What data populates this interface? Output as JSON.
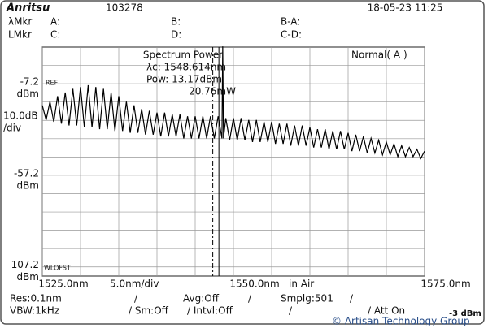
{
  "header": {
    "brand": "Anritsu",
    "id": "103278",
    "datetime": "18-05-23 11:25"
  },
  "markers": {
    "row1": [
      "λMkr",
      "A:",
      "B:",
      "B-A:"
    ],
    "row2": [
      "LMkr",
      "C:",
      "D:",
      "C-D:"
    ]
  },
  "annotation": {
    "title": "Spectrum Power",
    "lines": [
      "λc: 1548.614nm",
      "Pow:  13.17dBm",
      "20.76mW"
    ],
    "mode": "Normal( A )"
  },
  "labels": {
    "ref": "REF",
    "wloffset": "WLOFST",
    "y_unit": "dBm",
    "scale": "10.0dB",
    "scale_unit": "/div",
    "span": "5.0nm/div",
    "medium": "in Air"
  },
  "footer": {
    "row1": [
      "Res:0.1nm",
      "/",
      "Avg:Off",
      "/",
      "Smplg:501",
      "/"
    ],
    "row2": [
      "VBW:1kHz",
      "/ Sm:Off",
      "/ Intvl:Off",
      "/",
      "/ Att On",
      "-3 dBm"
    ],
    "watermark": "© Artisan Technology Group"
  },
  "chart_data": {
    "type": "line",
    "color": "#000000",
    "grid": true,
    "xlim": [
      1525,
      1575
    ],
    "ylim": [
      -112.2,
      12.8
    ],
    "xticks": [
      1525,
      1530,
      1535,
      1540,
      1545,
      1550,
      1555,
      1560,
      1565,
      1570,
      1575
    ],
    "xtick_labels": [
      {
        "value": 1525,
        "label": "1525.0nm"
      },
      {
        "value": 1550,
        "label": "1550.0nm"
      },
      {
        "value": 1575,
        "label": "1575.0nm"
      }
    ],
    "yticks": [
      2.8,
      -7.2,
      -17.2,
      -27.2,
      -37.2,
      -47.2,
      -57.2,
      -67.2,
      -77.2,
      -87.2,
      -97.2,
      -107.2
    ],
    "ytick_labels": [
      -7.2,
      -57.2,
      -107.2
    ],
    "vlines": [
      {
        "x": 1547.3,
        "style": "dashed"
      },
      {
        "x": 1548.1,
        "style": "solid"
      }
    ],
    "x": [
      1525,
      1525.5,
      1526,
      1526.5,
      1527,
      1527.5,
      1528,
      1528.5,
      1529,
      1529.5,
      1530,
      1530.5,
      1531,
      1531.5,
      1532,
      1532.5,
      1533,
      1533.5,
      1534,
      1534.5,
      1535,
      1535.5,
      1536,
      1536.5,
      1537,
      1537.5,
      1538,
      1538.5,
      1539,
      1539.5,
      1540,
      1540.5,
      1541,
      1541.5,
      1542,
      1542.5,
      1543,
      1543.5,
      1544,
      1544.5,
      1545,
      1545.5,
      1546,
      1546.5,
      1547,
      1547.5,
      1548,
      1548.5,
      1548.6,
      1548.7,
      1549,
      1549.5,
      1550,
      1550.5,
      1551,
      1551.5,
      1552,
      1552.5,
      1553,
      1553.5,
      1554,
      1554.5,
      1555,
      1555.5,
      1556,
      1556.5,
      1557,
      1557.5,
      1558,
      1558.5,
      1559,
      1559.5,
      1560,
      1560.5,
      1561,
      1561.5,
      1562,
      1562.5,
      1563,
      1563.5,
      1564,
      1564.5,
      1565,
      1565.5,
      1566,
      1566.5,
      1567,
      1567.5,
      1568,
      1568.5,
      1569,
      1569.5,
      1570,
      1570.5,
      1571,
      1571.5,
      1572,
      1572.5,
      1573,
      1573.5,
      1574,
      1574.5,
      1575
    ],
    "values": [
      -19,
      -27,
      -17,
      -28,
      -14,
      -29,
      -12,
      -30,
      -10,
      -30,
      -9,
      -31,
      -8,
      -31,
      -9,
      -32,
      -10,
      -32,
      -12,
      -33,
      -14,
      -33,
      -17,
      -34,
      -19,
      -34,
      -21,
      -35,
      -22,
      -35,
      -23,
      -36,
      -23,
      -36,
      -24,
      -36,
      -24,
      -37,
      -25,
      -37,
      -25,
      -37,
      -25,
      -37,
      -25,
      -37,
      -25,
      -37,
      13.17,
      -37,
      -26,
      -38,
      -26,
      -38,
      -26,
      -38,
      -27,
      -39,
      -27,
      -39,
      -28,
      -39,
      -28,
      -40,
      -29,
      -40,
      -29,
      -41,
      -30,
      -41,
      -30,
      -41,
      -31,
      -42,
      -32,
      -42,
      -32,
      -43,
      -33,
      -43,
      -33,
      -43,
      -34,
      -44,
      -35,
      -44,
      -36,
      -45,
      -37,
      -45,
      -38,
      -46,
      -39,
      -46,
      -40,
      -47,
      -41,
      -47,
      -42,
      -47,
      -43,
      -48,
      -44
    ]
  }
}
